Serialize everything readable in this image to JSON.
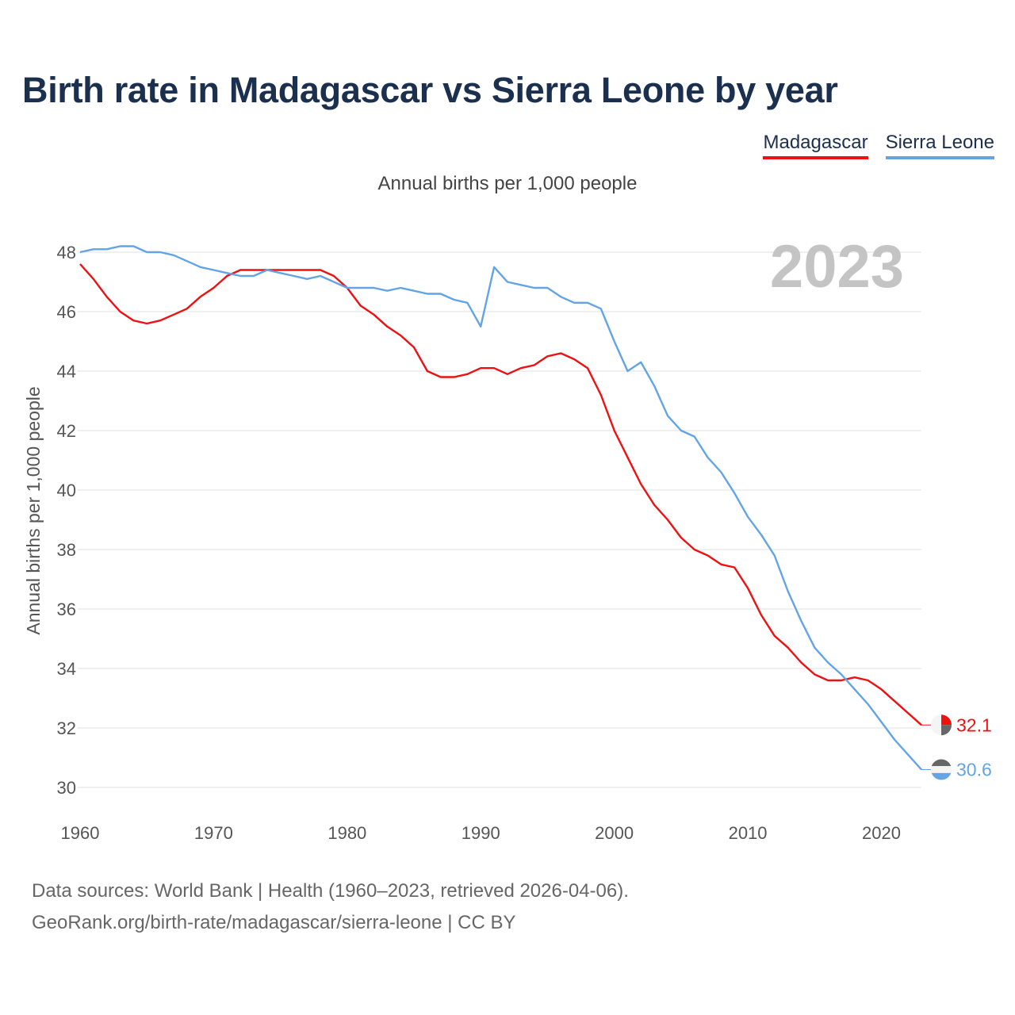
{
  "title": "Birth rate in Madagascar vs Sierra Leone by year",
  "subtitle": "Annual births per 1,000 people",
  "footer": {
    "line1": "Data sources: World Bank | Health (1960–2023, retrieved 2026-04-06).",
    "line2": "GeoRank.org/birth-rate/madagascar/sierra-leone | CC BY"
  },
  "chart_data": {
    "type": "line",
    "title": "Birth rate in Madagascar vs Sierra Leone by year",
    "ylabel": "Annual births per 1,000 people",
    "xlabel": "",
    "year_label": "2023",
    "xlim": [
      1960,
      2023
    ],
    "ylim": [
      30,
      48
    ],
    "x_ticks": [
      1960,
      1970,
      1980,
      1990,
      2000,
      2010,
      2020
    ],
    "y_ticks": [
      30,
      32,
      34,
      36,
      38,
      40,
      42,
      44,
      46,
      48
    ],
    "grid": true,
    "legend_position": "top-right",
    "series": [
      {
        "name": "Madagascar",
        "color": "#ee1111",
        "end_label": "32.1",
        "x_start": 1960,
        "values": [
          47.6,
          47.1,
          46.5,
          46.0,
          45.7,
          45.6,
          45.7,
          45.9,
          46.1,
          46.5,
          46.8,
          47.2,
          47.4,
          47.4,
          47.4,
          47.4,
          47.4,
          47.4,
          47.4,
          47.2,
          46.8,
          46.2,
          45.9,
          45.5,
          45.2,
          44.8,
          44.0,
          43.8,
          43.8,
          43.9,
          44.1,
          44.1,
          43.9,
          44.1,
          44.2,
          44.5,
          44.6,
          44.4,
          44.1,
          43.2,
          42.0,
          41.1,
          40.2,
          39.5,
          39.0,
          38.4,
          38.0,
          37.8,
          37.5,
          37.4,
          36.7,
          35.8,
          35.1,
          34.7,
          34.2,
          33.8,
          33.6,
          33.6,
          33.7,
          33.6,
          33.3,
          32.9,
          32.5,
          32.1
        ]
      },
      {
        "name": "Sierra Leone",
        "color": "#63a4e6",
        "end_label": "30.6",
        "x_start": 1960,
        "values": [
          48.0,
          48.1,
          48.1,
          48.2,
          48.2,
          48.0,
          48.0,
          47.9,
          47.7,
          47.5,
          47.4,
          47.3,
          47.2,
          47.2,
          47.4,
          47.3,
          47.2,
          47.1,
          47.2,
          47.0,
          46.8,
          46.8,
          46.8,
          46.7,
          46.8,
          46.7,
          46.6,
          46.6,
          46.4,
          46.3,
          45.5,
          47.5,
          47.0,
          46.9,
          46.8,
          46.8,
          46.5,
          46.3,
          46.3,
          46.1,
          45.0,
          44.0,
          44.3,
          43.5,
          42.5,
          42.0,
          41.8,
          41.1,
          40.6,
          39.9,
          39.1,
          38.5,
          37.8,
          36.6,
          35.6,
          34.7,
          34.2,
          33.8,
          33.3,
          32.8,
          32.2,
          31.6,
          31.1,
          30.6
        ]
      }
    ]
  }
}
